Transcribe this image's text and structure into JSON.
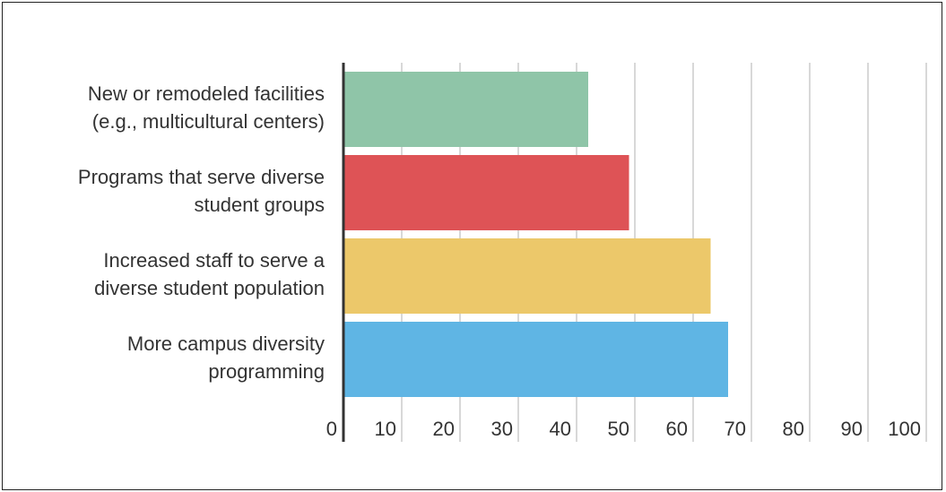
{
  "chart_data": {
    "type": "bar",
    "orientation": "horizontal",
    "title": "",
    "xlabel": "",
    "ylabel": "",
    "categories": [
      [
        "New or remodeled facilities",
        "(e.g., multicultural centers)"
      ],
      [
        "Programs that serve diverse",
        "student groups"
      ],
      [
        "Increased staff to serve a",
        "diverse student population"
      ],
      [
        "More campus diversity",
        "programming"
      ]
    ],
    "values": [
      42,
      49,
      63,
      66
    ],
    "colors": [
      "#8fc5a8",
      "#de5356",
      "#ecc86a",
      "#5fb5e4"
    ],
    "xlim": [
      0,
      100
    ],
    "ticks": [
      "0",
      "10",
      "20",
      "30",
      "40",
      "50",
      "60",
      "70",
      "80",
      "90",
      "100"
    ],
    "grid": true,
    "legend": "none"
  }
}
